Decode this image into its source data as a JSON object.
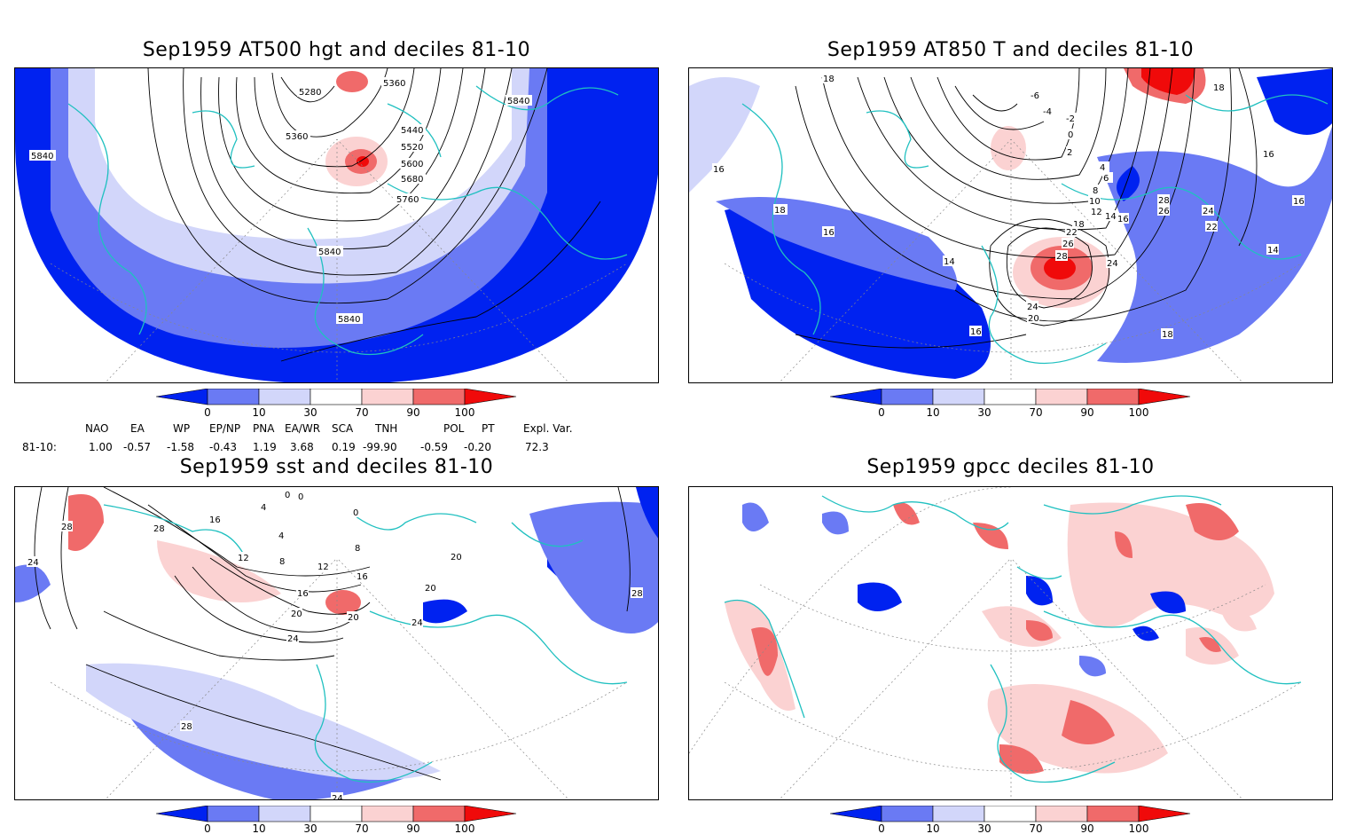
{
  "panels": [
    {
      "title": "Sep1959 AT500 hgt and deciles 81-10",
      "contour_labels": [
        "5280",
        "5360",
        "5360",
        "5440",
        "5520",
        "5600",
        "5680",
        "5760",
        "5840",
        "5840",
        "5840",
        "5840"
      ]
    },
    {
      "title": "Sep1959 AT850 T and deciles 81-10",
      "contour_labels": [
        "18",
        "16",
        "18",
        "-6",
        "-4",
        "-2",
        "0",
        "2",
        "4",
        "6",
        "8",
        "10",
        "12",
        "14",
        "16",
        "18",
        "16",
        "14",
        "22",
        "26",
        "28",
        "24",
        "24",
        "20",
        "16",
        "18",
        "16",
        "28",
        "26",
        "24",
        "22",
        "16",
        "14",
        "18"
      ]
    },
    {
      "title": "Sep1959 sst and deciles 81-10",
      "contour_labels": [
        "28",
        "28",
        "24",
        "16",
        "0",
        "0",
        "4",
        "4",
        "0",
        "8",
        "12",
        "8",
        "12",
        "16",
        "16",
        "20",
        "20",
        "24",
        "24",
        "20",
        "20",
        "28",
        "28",
        "24"
      ]
    },
    {
      "title": "Sep1959 gpcc deciles 81-10",
      "contour_labels": []
    }
  ],
  "colorbar": {
    "ticks": [
      "0",
      "10",
      "30",
      "70",
      "90",
      "100"
    ],
    "colors": [
      "#0022f0",
      "#6a7af4",
      "#d2d6fa",
      "#ffffff",
      "#fbd2d2",
      "#f06a6a",
      "#f00a0a"
    ]
  },
  "indices": {
    "headers": [
      "NAO",
      "EA",
      "WP",
      "EP/NP",
      "PNA",
      "EA/WR",
      "SCA",
      "TNH",
      "POL",
      "PT",
      "Expl. Var."
    ],
    "row_label": "81-10:",
    "values": [
      "1.00",
      "-0.57",
      "-1.58",
      "-0.43",
      "1.19",
      "3.68",
      "0.19",
      "-99.90",
      "-0.59",
      "-0.20",
      "72.3"
    ]
  }
}
